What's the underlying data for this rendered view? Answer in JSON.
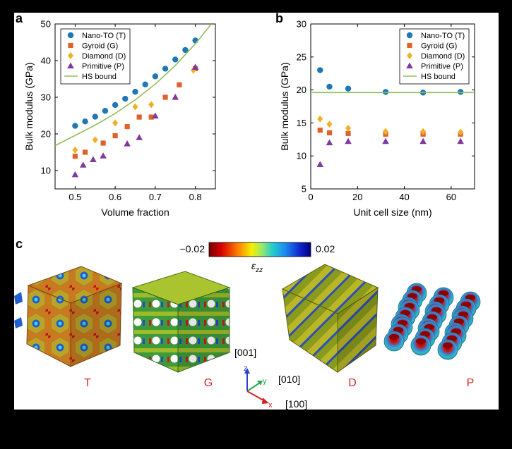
{
  "panel_labels": {
    "a": "a",
    "b": "b",
    "c": "c"
  },
  "colors": {
    "T": "#1f77b4",
    "G": "#e0622a",
    "D": "#f0b025",
    "P": "#7e3a9e",
    "HS": "#8fbe5b"
  },
  "chart_data": [
    {
      "type": "scatter",
      "panel": "a",
      "xlabel": "Volume fraction",
      "ylabel": "Bulk modulus (GPa)",
      "xlim": [
        0.45,
        0.85
      ],
      "ylim": [
        5,
        50
      ],
      "xticks": [
        0.5,
        0.6,
        0.7,
        0.8
      ],
      "xtick_labels": [
        "0.5",
        "0.6",
        "0.7",
        "0.8"
      ],
      "yticks": [
        10,
        20,
        30,
        40,
        50
      ],
      "ytick_labels": [
        "10",
        "20",
        "30",
        "40",
        "50"
      ],
      "legend": [
        "Nano-TO (T)",
        "Gyroid (G)",
        "Diamond (D)",
        "Primitive (P)",
        "HS bound"
      ],
      "series": [
        {
          "name": "Nano-TO (T)",
          "key": "T",
          "marker": "circle",
          "x": [
            0.5,
            0.525,
            0.55,
            0.575,
            0.6,
            0.625,
            0.65,
            0.675,
            0.7,
            0.725,
            0.75,
            0.775,
            0.8
          ],
          "y": [
            22.2,
            23.4,
            24.7,
            26.3,
            27.9,
            29.6,
            31.5,
            33.5,
            35.7,
            37.8,
            40.3,
            42.9,
            45.5
          ]
        },
        {
          "name": "Gyroid (G)",
          "key": "G",
          "marker": "square",
          "x": [
            0.5,
            0.525,
            0.57,
            0.6,
            0.63,
            0.66,
            0.69,
            0.725,
            0.76,
            0.8
          ],
          "y": [
            13.9,
            15.0,
            17.5,
            19.5,
            22.0,
            24.6,
            24.6,
            30.0,
            33.4,
            37.8
          ]
        },
        {
          "name": "Diamond (D)",
          "key": "D",
          "marker": "diamond",
          "x": [
            0.5,
            0.55,
            0.6,
            0.65,
            0.69,
            0.795
          ],
          "y": [
            15.6,
            18.4,
            23.0,
            27.4,
            28.0,
            37.4
          ]
        },
        {
          "name": "Primitive (P)",
          "key": "P",
          "marker": "triangle",
          "x": [
            0.5,
            0.52,
            0.545,
            0.57,
            0.63,
            0.66,
            0.7,
            0.75,
            0.8
          ],
          "y": [
            8.9,
            11.5,
            13.0,
            14.0,
            17.3,
            19.0,
            24.9,
            30.0,
            38.2
          ]
        },
        {
          "name": "HS bound",
          "key": "HS",
          "marker": "line",
          "x": [
            0.45,
            0.5,
            0.55,
            0.6,
            0.65,
            0.7,
            0.75,
            0.8,
            0.84
          ],
          "y": [
            16.8,
            19.6,
            22.4,
            25.6,
            29.3,
            33.6,
            38.7,
            44.6,
            50.0
          ]
        }
      ]
    },
    {
      "type": "scatter",
      "panel": "b",
      "xlabel": "Unit cell size (nm)",
      "ylabel": "Bulk modulus (GPa)",
      "xlim": [
        0,
        70
      ],
      "ylim": [
        5,
        30
      ],
      "xticks": [
        0,
        20,
        40,
        60
      ],
      "xtick_labels": [
        "0",
        "20",
        "40",
        "60"
      ],
      "yticks": [
        5,
        10,
        15,
        20,
        25,
        30
      ],
      "ytick_labels": [
        "5",
        "10",
        "15",
        "20",
        "25",
        "30"
      ],
      "legend": [
        "Nano-TO (T)",
        "Gyroid (G)",
        "Diamond (D)",
        "Primitive (P)",
        "HS bound"
      ],
      "series": [
        {
          "name": "Nano-TO (T)",
          "key": "T",
          "marker": "circle",
          "x": [
            4,
            8,
            16,
            32,
            48,
            64
          ],
          "y": [
            23.0,
            20.5,
            20.2,
            19.7,
            19.6,
            19.7
          ]
        },
        {
          "name": "Gyroid (G)",
          "key": "G",
          "marker": "square",
          "x": [
            4,
            8,
            16,
            32,
            48,
            64
          ],
          "y": [
            13.9,
            13.5,
            13.4,
            13.3,
            13.3,
            13.3
          ]
        },
        {
          "name": "Diamond (D)",
          "key": "D",
          "marker": "diamond",
          "x": [
            4,
            8,
            16,
            32,
            48,
            64
          ],
          "y": [
            15.6,
            14.8,
            14.2,
            13.7,
            13.7,
            13.6
          ]
        },
        {
          "name": "Primitive (P)",
          "key": "P",
          "marker": "triangle",
          "x": [
            4,
            8,
            16,
            32,
            48,
            64
          ],
          "y": [
            8.7,
            12.0,
            12.2,
            12.2,
            12.2,
            12.2
          ]
        },
        {
          "name": "HS bound",
          "key": "HS",
          "marker": "line",
          "x": [
            0,
            70
          ],
          "y": [
            19.6,
            19.6
          ]
        }
      ]
    }
  ],
  "colorbar": {
    "min_label": "−0.02",
    "max_label": "0.02",
    "label": "ε",
    "label_sub": "zz"
  },
  "structures": [
    {
      "key": "T",
      "label": "T"
    },
    {
      "key": "G",
      "label": "G"
    },
    {
      "key": "D",
      "label": "D"
    },
    {
      "key": "P",
      "label": "P"
    }
  ],
  "axes_triad": {
    "z": "z",
    "y": "y",
    "x": "x",
    "dir_001": "[001]",
    "dir_010": "[010]",
    "dir_100": "[100]"
  }
}
